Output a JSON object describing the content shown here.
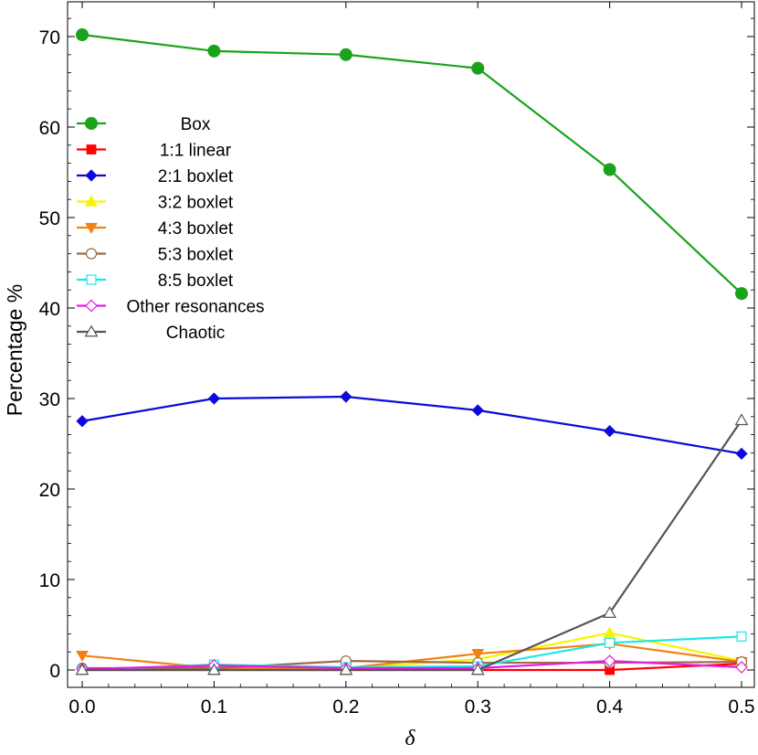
{
  "chart_data": {
    "type": "line",
    "title": "",
    "xlabel": "δ",
    "ylabel": "Percentage %",
    "x": [
      0.0,
      0.1,
      0.2,
      0.3,
      0.4,
      0.5
    ],
    "x_tick_labels": [
      "0.0",
      "0.1",
      "0.2",
      "0.3",
      "0.4",
      "0.5"
    ],
    "y_ticks": [
      0,
      10,
      20,
      30,
      40,
      50,
      60,
      70
    ],
    "xlim": [
      0.0,
      0.5
    ],
    "ylim": [
      -2,
      74
    ],
    "grid": false,
    "legend_position": "upper-left",
    "series": [
      {
        "name": "Box",
        "color": "#1aa31a",
        "marker": "circle-filled",
        "values": [
          70.2,
          68.4,
          68.0,
          66.5,
          55.3,
          41.6
        ]
      },
      {
        "name": "1:1 linear",
        "color": "#ff0000",
        "marker": "square-filled",
        "values": [
          0.0,
          0.0,
          0.0,
          0.0,
          0.0,
          0.7
        ]
      },
      {
        "name": "2:1 boxlet",
        "color": "#0a0adc",
        "marker": "diamond-filled",
        "values": [
          27.5,
          30.0,
          30.2,
          28.7,
          26.4,
          23.9
        ]
      },
      {
        "name": "3:2 boxlet",
        "color": "#f5f500",
        "marker": "triangle-up-filled",
        "values": [
          0.0,
          0.0,
          0.2,
          1.2,
          4.1,
          1.0
        ]
      },
      {
        "name": "4:3 boxlet",
        "color": "#f08214",
        "marker": "triangle-down-filled",
        "values": [
          1.6,
          0.2,
          0.2,
          1.8,
          2.9,
          0.9
        ]
      },
      {
        "name": "5:3 boxlet",
        "color": "#9b6b44",
        "marker": "circle-open",
        "values": [
          0.2,
          0.2,
          1.0,
          0.8,
          0.8,
          0.9
        ]
      },
      {
        "name": "8:5 boxlet",
        "color": "#1ee6e6",
        "marker": "square-open",
        "values": [
          0.0,
          0.6,
          0.3,
          0.4,
          3.0,
          3.7
        ]
      },
      {
        "name": "Other resonances",
        "color": "#e619e6",
        "marker": "diamond-open",
        "values": [
          0.1,
          0.5,
          0.2,
          0.2,
          1.0,
          0.3
        ]
      },
      {
        "name": "Chaotic",
        "color": "#555555",
        "marker": "triangle-up-open",
        "values": [
          0.0,
          0.0,
          0.0,
          0.0,
          6.3,
          27.6
        ]
      }
    ]
  }
}
